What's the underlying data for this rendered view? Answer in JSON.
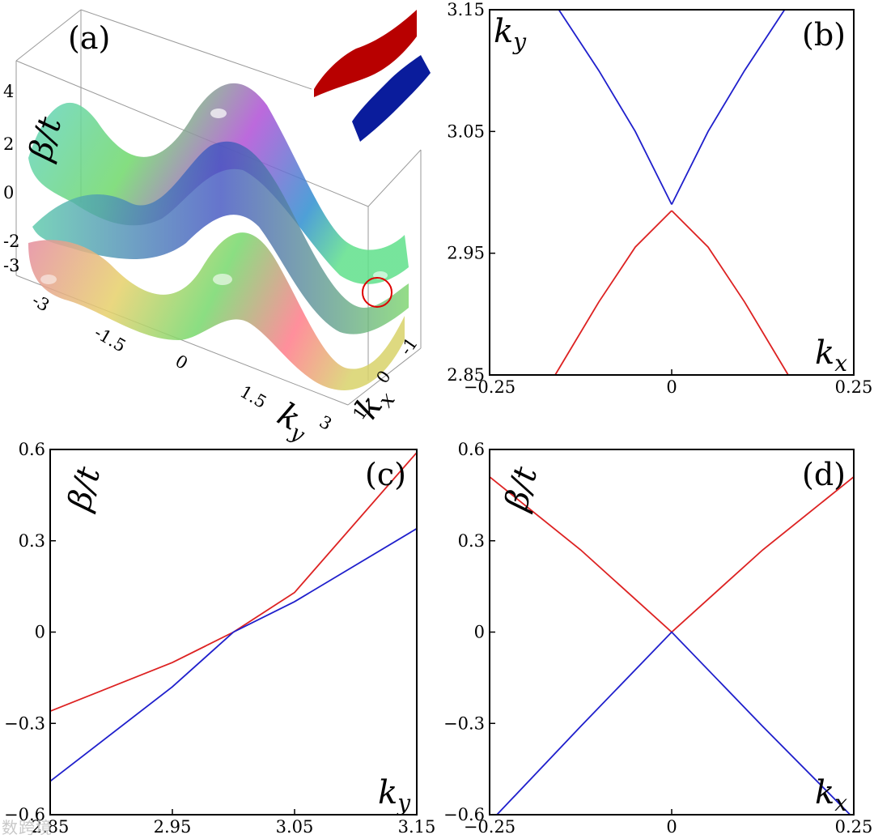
{
  "chart_data": [
    {
      "panel": "(a)",
      "type": "surface3d",
      "xlabel": "k_y",
      "ylabel": "k_x",
      "zlabel": "β/t",
      "ky_ticks": [
        "-3",
        "-1.5",
        "0",
        "1.5",
        "3"
      ],
      "kx_ticks": [
        "-1",
        "0",
        "1"
      ],
      "z_ticks": [
        "4",
        "2",
        "0",
        "-2",
        "-3"
      ],
      "annotation": "red circle marking the degeneracy point near k_x = 0, k_y ≈ 3",
      "colors": {
        "upper_band": "#cc0000",
        "lower_band": "#001f9c"
      }
    },
    {
      "panel": "(b)",
      "type": "line",
      "xlabel": "k_x",
      "ylabel": "k_y",
      "xlim": [
        -0.25,
        0.25
      ],
      "ylim": [
        2.85,
        3.15
      ],
      "x_ticks": [
        "−0.25",
        "0",
        "0.25"
      ],
      "y_ticks": [
        "3.15",
        "3.05",
        "2.95",
        "2.85"
      ],
      "x_tick_values": [
        -0.25,
        0,
        0.25
      ],
      "y_tick_values": [
        3.15,
        3.05,
        2.95,
        2.85
      ],
      "series": [
        {
          "color": "#1f1fcc",
          "x": [
            -0.155,
            -0.1,
            -0.05,
            0.0
          ],
          "y": [
            3.15,
            3.1,
            3.05,
            2.99
          ]
        },
        {
          "color": "#1f1fcc",
          "x": [
            0.0,
            0.05,
            0.1,
            0.155
          ],
          "y": [
            2.99,
            3.05,
            3.1,
            3.15
          ]
        },
        {
          "color": "#dd2222",
          "x": [
            -0.16,
            -0.1,
            -0.05,
            0.0
          ],
          "y": [
            2.85,
            2.91,
            2.955,
            2.985
          ]
        },
        {
          "color": "#dd2222",
          "x": [
            0.0,
            0.05,
            0.1,
            0.16
          ],
          "y": [
            2.985,
            2.955,
            2.91,
            2.85
          ]
        }
      ]
    },
    {
      "panel": "(c)",
      "type": "line",
      "xlabel": "k_y",
      "ylabel": "β/t",
      "xlim": [
        2.85,
        3.15
      ],
      "ylim": [
        -0.6,
        0.6
      ],
      "x_ticks": [
        "2.85",
        "2.95",
        "3.05",
        "3.15"
      ],
      "y_ticks": [
        "0.6",
        "0.3",
        "0",
        "−0.3",
        "−0.6"
      ],
      "x_tick_values": [
        2.85,
        2.95,
        3.05,
        3.15
      ],
      "y_tick_values": [
        0.6,
        0.3,
        0,
        -0.3,
        -0.6
      ],
      "series": [
        {
          "color": "#dd2222",
          "x": [
            2.85,
            2.95,
            3.0,
            3.05,
            3.15
          ],
          "y": [
            -0.26,
            -0.1,
            0.0,
            0.13,
            0.59
          ]
        },
        {
          "color": "#1f1fcc",
          "x": [
            2.85,
            2.95,
            3.0,
            3.05,
            3.15
          ],
          "y": [
            -0.49,
            -0.18,
            0.0,
            0.1,
            0.34
          ]
        }
      ]
    },
    {
      "panel": "(d)",
      "type": "line",
      "xlabel": "k_x",
      "ylabel": "β/t",
      "xlim": [
        -0.25,
        0.25
      ],
      "ylim": [
        -0.6,
        0.6
      ],
      "x_ticks": [
        "−0.25",
        "0",
        "0.25"
      ],
      "y_ticks": [
        "0.6",
        "0.3",
        "0",
        "−0.3",
        "−0.6"
      ],
      "x_tick_values": [
        -0.25,
        0,
        0.25
      ],
      "y_tick_values": [
        0.6,
        0.3,
        0,
        -0.3,
        -0.6
      ],
      "series": [
        {
          "color": "#dd2222",
          "x": [
            -0.25,
            -0.125,
            0.0,
            0.125,
            0.25
          ],
          "y": [
            0.51,
            0.27,
            0.0,
            0.27,
            0.51
          ]
        },
        {
          "color": "#1f1fcc",
          "x": [
            -0.24,
            -0.125,
            0.0,
            0.125,
            0.245
          ],
          "y": [
            -0.6,
            -0.31,
            0.0,
            -0.31,
            -0.6
          ]
        }
      ]
    }
  ],
  "watermark": "数跨境"
}
